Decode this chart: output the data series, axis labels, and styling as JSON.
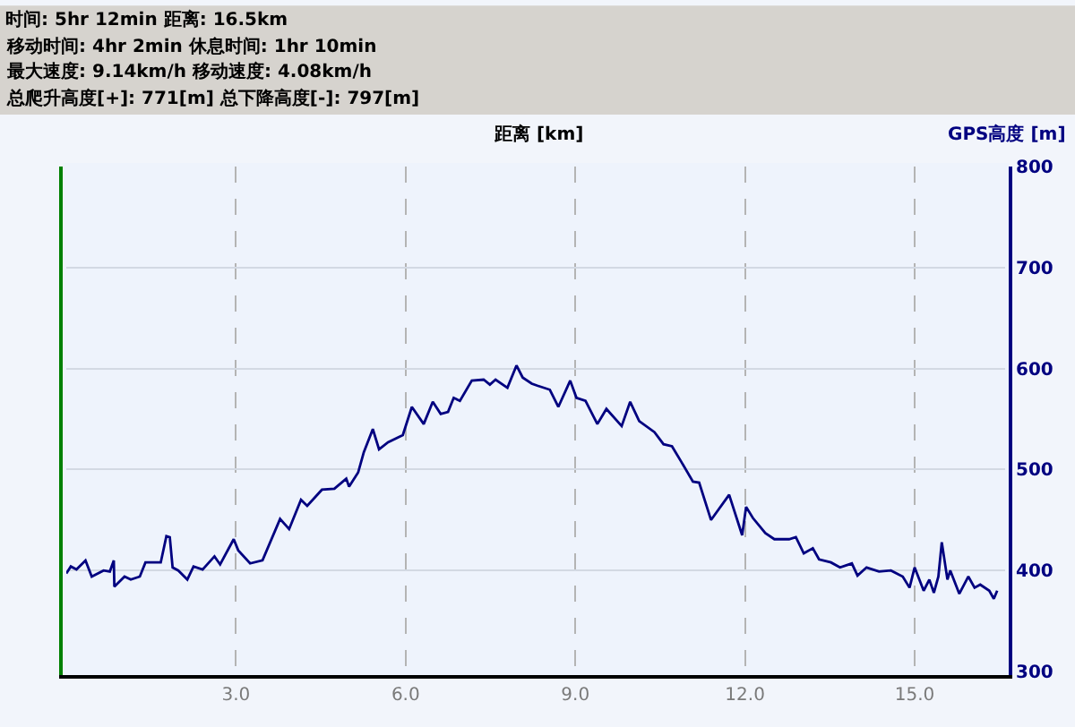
{
  "chart_data": {
    "type": "line",
    "xlabel": "距离 [km]",
    "ylabel": "GPS高度 [m]",
    "annotations": [
      "时间: 5hr 12min 距离: 16.5km",
      "移动时间: 4hr 2min 休息时间: 1hr 10min",
      "最大速度: 9.14km/h 移动速度: 4.08km/h",
      "总爬升高度[+]: 771[m] 总下降高度[-]: 797[m]"
    ],
    "x": [
      0,
      0.08,
      0.18,
      0.34,
      0.45,
      0.66,
      0.77,
      0.84,
      0.85,
      1.03,
      1.14,
      1.3,
      1.4,
      1.67,
      1.77,
      1.83,
      1.88,
      1.98,
      2.14,
      2.25,
      2.41,
      2.62,
      2.72,
      2.96,
      3.04,
      3.25,
      3.47,
      3.78,
      3.94,
      4.15,
      4.26,
      4.52,
      4.74,
      4.95,
      5.0,
      5.16,
      5.26,
      5.42,
      5.53,
      5.69,
      5.95,
      6.11,
      6.32,
      6.48,
      6.62,
      6.75,
      6.85,
      6.96,
      7.17,
      7.38,
      7.49,
      7.59,
      7.8,
      7.96,
      8.07,
      8.23,
      8.33,
      8.55,
      8.7,
      8.91,
      9.02,
      9.18,
      9.39,
      9.55,
      9.82,
      9.97,
      10.13,
      10.4,
      10.56,
      10.71,
      10.87,
      11.08,
      11.19,
      11.4,
      11.72,
      11.95,
      12.02,
      12.14,
      12.36,
      12.52,
      12.78,
      12.9,
      13.04,
      13.2,
      13.31,
      13.52,
      13.68,
      13.89,
      13.99,
      14.15,
      14.37,
      14.58,
      14.79,
      14.91,
      15.0,
      15.16,
      15.26,
      15.34,
      15.42,
      15.48,
      15.58,
      15.63,
      15.79,
      15.95,
      16.06,
      16.16,
      16.32,
      16.4,
      16.46
    ],
    "series": [
      {
        "color": "#000080",
        "values": [
          397,
          404,
          401,
          410,
          394,
          400,
          399,
          410,
          384,
          394,
          391,
          394,
          408,
          408,
          434,
          433,
          403,
          400,
          391,
          404,
          401,
          414,
          406,
          431,
          420,
          407,
          410,
          451,
          441,
          470,
          464,
          480,
          481,
          491,
          483,
          497,
          517,
          540,
          520,
          527,
          534,
          562,
          545,
          567,
          555,
          557,
          571,
          568,
          588,
          589,
          584,
          589,
          581,
          603,
          591,
          585,
          583,
          579,
          562,
          588,
          571,
          568,
          545,
          560,
          543,
          567,
          548,
          537,
          525,
          523,
          508,
          488,
          487,
          450,
          475,
          435,
          463,
          452,
          437,
          431,
          431,
          433,
          417,
          422,
          411,
          408,
          403,
          407,
          395,
          403,
          399,
          400,
          394,
          383,
          403,
          380,
          391,
          378,
          394,
          428,
          391,
          400,
          377,
          394,
          383,
          386,
          380,
          372,
          380
        ]
      }
    ],
    "xlim": [
      0,
      16.6
    ],
    "xticks": [
      {
        "value": 3,
        "label": "3.0"
      },
      {
        "value": 6,
        "label": "6.0"
      },
      {
        "value": 9,
        "label": "9.0"
      },
      {
        "value": 12,
        "label": "12.0"
      },
      {
        "value": 15,
        "label": "15.0"
      }
    ],
    "ylim": [
      300,
      800
    ],
    "yticks": [
      300,
      400,
      500,
      600,
      700,
      800
    ],
    "grid": true,
    "marker": "none",
    "line_style": "solid"
  }
}
